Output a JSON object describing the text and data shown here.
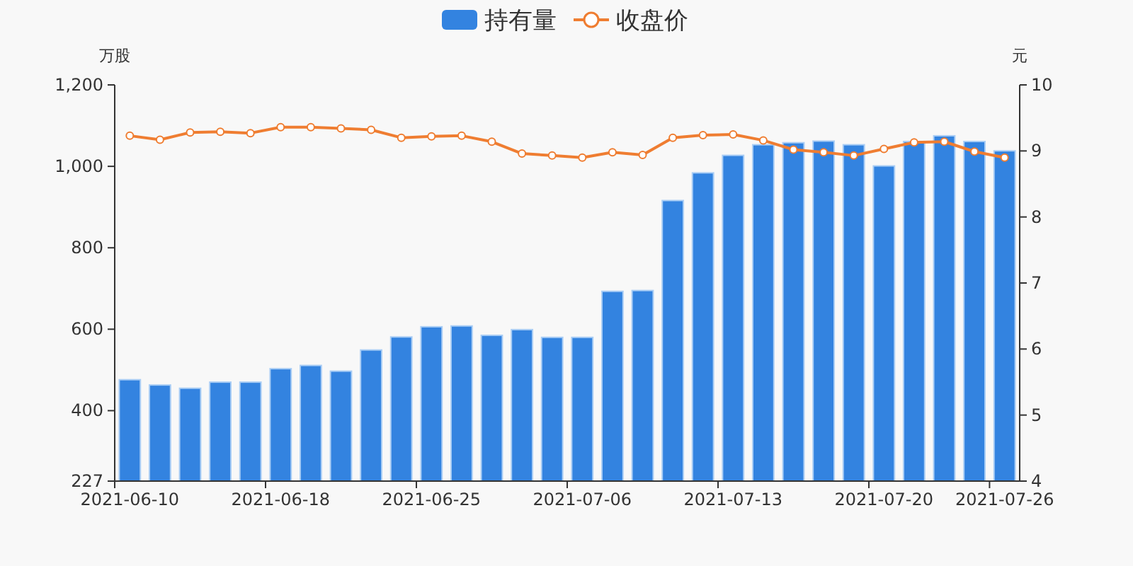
{
  "chart_data": {
    "type": "bar",
    "categories": [
      "2021-06-10",
      null,
      null,
      null,
      null,
      "2021-06-18",
      null,
      null,
      null,
      null,
      "2021-06-25",
      null,
      null,
      null,
      null,
      "2021-07-06",
      null,
      null,
      null,
      null,
      "2021-07-13",
      null,
      null,
      null,
      null,
      "2021-07-20",
      null,
      null,
      null,
      "2021-07-26"
    ],
    "series": [
      {
        "name": "持有量",
        "color": "#3383e0",
        "values": [
          476,
          463,
          455,
          470,
          470,
          503,
          511,
          497,
          549,
          581,
          606,
          608,
          585,
          599,
          580,
          580,
          693,
          695,
          916,
          984,
          1027,
          1053,
          1058,
          1062,
          1053,
          1001,
          1061,
          1075,
          1061,
          1038
        ]
      },
      {
        "name": "收盘价",
        "type": "line",
        "axis": "y2",
        "color": "#ef7d31",
        "marker": "circle",
        "values": [
          9.23,
          9.17,
          9.28,
          9.29,
          9.27,
          9.36,
          9.36,
          9.34,
          9.32,
          9.2,
          9.22,
          9.23,
          9.14,
          8.96,
          8.93,
          8.9,
          8.98,
          8.94,
          9.2,
          9.24,
          9.25,
          9.16,
          9.02,
          8.98,
          8.93,
          9.03,
          9.13,
          9.14,
          8.99,
          8.9
        ]
      }
    ],
    "ylabel": "万股",
    "y2label": "元",
    "ylim": [
      227,
      1200
    ],
    "yticks": [
      227,
      400,
      600,
      800,
      {
        "value": 1000,
        "label": "1,000"
      },
      {
        "value": 1200,
        "label": "1,200"
      }
    ],
    "y2lim": [
      4,
      10
    ],
    "y2ticks": [
      4,
      5,
      6,
      7,
      8,
      9,
      10
    ],
    "legend": "top",
    "grid": false
  }
}
